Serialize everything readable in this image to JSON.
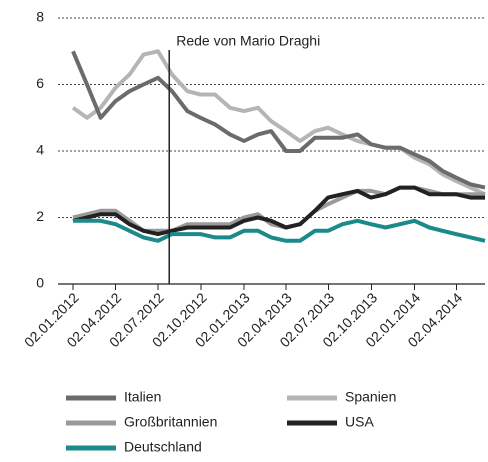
{
  "chart_data": {
    "type": "line",
    "x": [
      "2012-01-02",
      "2012-02-01",
      "2012-03-01",
      "2012-04-02",
      "2012-05-02",
      "2012-06-01",
      "2012-07-02",
      "2012-08-01",
      "2012-09-03",
      "2012-10-01",
      "2012-11-01",
      "2012-12-03",
      "2013-01-02",
      "2013-02-01",
      "2013-03-01",
      "2013-04-02",
      "2013-05-02",
      "2013-06-03",
      "2013-07-01",
      "2013-08-01",
      "2013-09-02",
      "2013-10-01",
      "2013-11-01",
      "2013-12-02",
      "2014-01-02",
      "2014-02-03",
      "2014-03-03",
      "2014-04-01",
      "2014-05-02",
      "2014-06-02"
    ],
    "series": [
      {
        "name": "Italien",
        "color": "#6b6b6b",
        "values": [
          7.0,
          6.0,
          5.0,
          5.5,
          5.8,
          6.0,
          6.2,
          5.8,
          5.2,
          5.0,
          4.8,
          4.5,
          4.3,
          4.5,
          4.6,
          4.0,
          4.0,
          4.4,
          4.4,
          4.4,
          4.5,
          4.2,
          4.1,
          4.1,
          3.9,
          3.7,
          3.4,
          3.2,
          3.0,
          2.9
        ]
      },
      {
        "name": "Spanien",
        "color": "#b5b5b5",
        "values": [
          5.3,
          5.0,
          5.3,
          5.9,
          6.3,
          6.9,
          7.0,
          6.3,
          5.8,
          5.7,
          5.7,
          5.3,
          5.2,
          5.3,
          4.9,
          4.6,
          4.3,
          4.6,
          4.7,
          4.5,
          4.3,
          4.2,
          4.1,
          4.1,
          3.8,
          3.6,
          3.3,
          3.1,
          2.9,
          2.7
        ]
      },
      {
        "name": "Großbritannien",
        "color": "#9a9a9a",
        "values": [
          2.0,
          2.1,
          2.2,
          2.2,
          1.9,
          1.6,
          1.6,
          1.6,
          1.8,
          1.8,
          1.8,
          1.8,
          2.0,
          2.1,
          1.8,
          1.7,
          1.8,
          2.2,
          2.4,
          2.6,
          2.8,
          2.8,
          2.7,
          2.9,
          2.9,
          2.8,
          2.7,
          2.7,
          2.7,
          2.7
        ]
      },
      {
        "name": "USA",
        "color": "#222222",
        "values": [
          1.9,
          2.0,
          2.1,
          2.1,
          1.8,
          1.6,
          1.5,
          1.6,
          1.7,
          1.7,
          1.7,
          1.7,
          1.9,
          2.0,
          1.9,
          1.7,
          1.8,
          2.2,
          2.6,
          2.7,
          2.8,
          2.6,
          2.7,
          2.9,
          2.9,
          2.7,
          2.7,
          2.7,
          2.6,
          2.6
        ]
      },
      {
        "name": "Deutschland",
        "color": "#1a8a8a",
        "values": [
          1.9,
          1.9,
          1.9,
          1.8,
          1.6,
          1.4,
          1.3,
          1.5,
          1.5,
          1.5,
          1.4,
          1.4,
          1.6,
          1.6,
          1.4,
          1.3,
          1.3,
          1.6,
          1.6,
          1.8,
          1.9,
          1.8,
          1.7,
          1.8,
          1.9,
          1.7,
          1.6,
          1.5,
          1.4,
          1.3
        ]
      }
    ],
    "xlim": [
      "2012-01-02",
      "2014-06-02"
    ],
    "xticks": [
      {
        "value": "2012-01-02",
        "label": "02.01.2012"
      },
      {
        "value": "2012-04-02",
        "label": "02.04.2012"
      },
      {
        "value": "2012-07-02",
        "label": "02.07.2012"
      },
      {
        "value": "2012-10-02",
        "label": "02.10.2012"
      },
      {
        "value": "2013-01-02",
        "label": "02.01.2013"
      },
      {
        "value": "2013-04-02",
        "label": "02.04.2013"
      },
      {
        "value": "2013-07-02",
        "label": "02.07.2013"
      },
      {
        "value": "2013-10-02",
        "label": "02.10.2013"
      },
      {
        "value": "2014-01-02",
        "label": "02.01.2014"
      },
      {
        "value": "2014-04-02",
        "label": "02.04.2014"
      }
    ],
    "ylim": [
      0,
      8
    ],
    "yticks": [
      0,
      2,
      4,
      6,
      8
    ],
    "grid": true,
    "annotation": {
      "x": "2012-07-26",
      "text": "Rede von Mario Draghi"
    }
  }
}
